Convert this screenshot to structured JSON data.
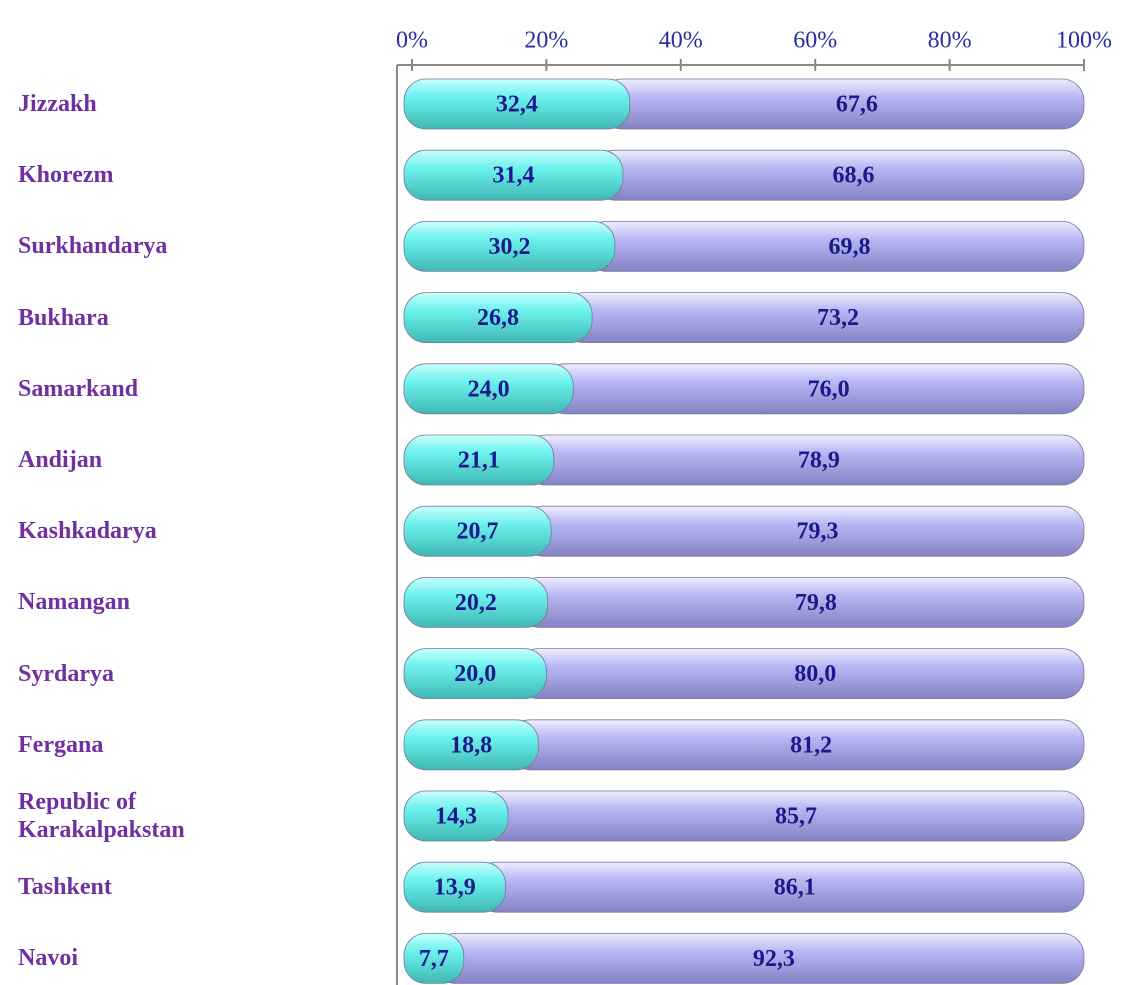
{
  "chart_data": {
    "type": "stacked-bar",
    "orientation": "horizontal",
    "categories": [
      "Jizzakh",
      "Khorezm",
      "Surkhandarya",
      "Bukhara",
      "Samarkand",
      "Andijan",
      "Kashkadarya",
      "Namangan",
      "Syrdarya",
      "Fergana",
      "Republic of Karakalpakstan",
      "Tashkent",
      "Navoi"
    ],
    "series": [
      {
        "color": "#6ef2ee",
        "values": [
          32.4,
          31.4,
          30.2,
          26.8,
          24.0,
          21.1,
          20.7,
          20.2,
          20.0,
          18.8,
          14.3,
          13.9,
          7.7
        ],
        "value_labels": [
          "32,4",
          "31,4",
          "30,2",
          "26,8",
          "24,0",
          "21,1",
          "20,7",
          "20,2",
          "20,0",
          "18,8",
          "14,3",
          "13,9",
          "7,7"
        ]
      },
      {
        "color": "#b8b8f4",
        "values": [
          67.6,
          68.6,
          69.8,
          73.2,
          76.0,
          78.9,
          79.3,
          79.8,
          80.0,
          81.2,
          85.7,
          86.1,
          92.3
        ],
        "value_labels": [
          "67,6",
          "68,6",
          "69,8",
          "73,2",
          "76,0",
          "78,9",
          "79,3",
          "79,8",
          "80,0",
          "81,2",
          "85,7",
          "86,1",
          "92,3"
        ]
      }
    ],
    "xlim": [
      0,
      100
    ],
    "xticks": [
      {
        "value": 0,
        "label": "0%"
      },
      {
        "value": 20,
        "label": "20%"
      },
      {
        "value": 40,
        "label": "40%"
      },
      {
        "value": 60,
        "label": "60%"
      },
      {
        "value": 80,
        "label": "80%"
      },
      {
        "value": 100,
        "label": "100%"
      }
    ],
    "axis_position": "top",
    "grid": false
  }
}
